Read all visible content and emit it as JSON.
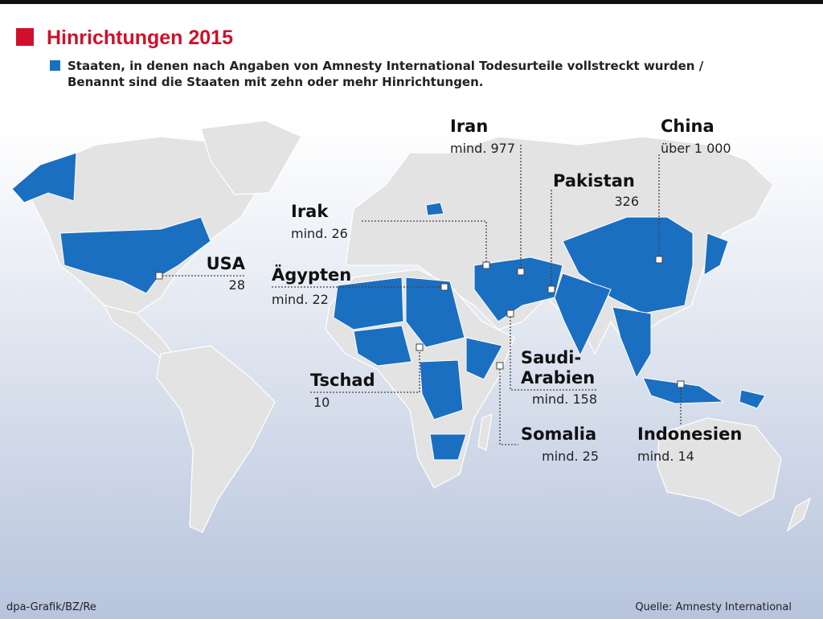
{
  "header": {
    "title": "Hinrichtungen 2015"
  },
  "legend": {
    "lines": [
      "Staaten, in denen nach Angaben von Amnesty International Todesurteile vollstreckt wurden /",
      "Benannt sind die Staaten mit zehn oder mehr Hinrichtungen."
    ]
  },
  "countries": [
    {
      "name_lines": [
        "Iran"
      ],
      "count": "mind. 977"
    },
    {
      "name_lines": [
        "China"
      ],
      "count": "über 1 000"
    },
    {
      "name_lines": [
        "Pakistan"
      ],
      "count": "326"
    },
    {
      "name_lines": [
        "Irak"
      ],
      "count": "mind. 26"
    },
    {
      "name_lines": [
        "USA"
      ],
      "count": "28"
    },
    {
      "name_lines": [
        "Ägypten"
      ],
      "count": "mind. 22"
    },
    {
      "name_lines": [
        "Tschad"
      ],
      "count": "10"
    },
    {
      "name_lines": [
        "Saudi-",
        "Arabien"
      ],
      "count": "mind. 158"
    },
    {
      "name_lines": [
        "Somalia"
      ],
      "count": "mind. 25"
    },
    {
      "name_lines": [
        "Indonesien"
      ],
      "count": "mind. 14"
    }
  ],
  "footer": {
    "credit": "dpa-Grafik/BZ/Re",
    "source": "Quelle: Amnesty International"
  }
}
